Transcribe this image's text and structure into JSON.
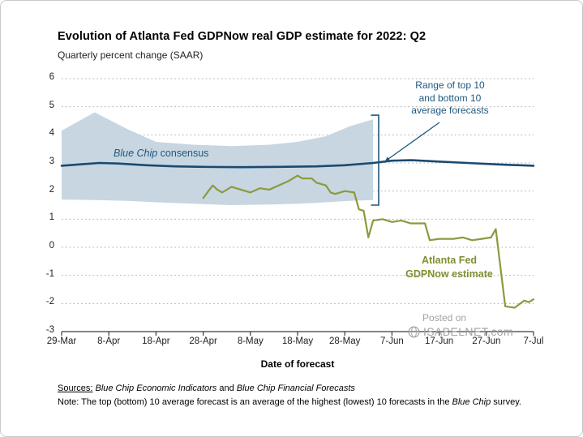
{
  "title": "Evolution of Atlanta Fed GDPNow real GDP estimate for 2022: Q2",
  "subtitle": "Quarterly percent change (SAAR)",
  "xlabel": "Date of forecast",
  "annotations": {
    "consensus_italic": "Blue Chip",
    "consensus_rest": " consensus",
    "range_text": "Range of top 10\nand bottom 10\naverage forecasts",
    "gdpnow_text": "Atlanta Fed\nGDPNow estimate"
  },
  "watermark": {
    "line1": "Posted on",
    "line2": "ISABELNET.com"
  },
  "footer": {
    "sources_label": "Sources:",
    "source1": "Blue Chip Economic Indicators",
    "sources_mid": "and",
    "source2": "Blue Chip Financial Forecasts",
    "note_label": "Note:",
    "note_text_1": "The top (bottom) 10 average forecast is an average of the highest (lowest) 10 forecasts in the",
    "note_italic": "Blue Chip",
    "note_text_2": "survey."
  },
  "colors": {
    "band": "#c7d6e1",
    "consensus_line": "#1a4a71",
    "gdpnow_line": "#8b9a3d",
    "annotation_blue": "#1f587e",
    "annotation_olive": "#7d9032",
    "grid": "#b5b5b5",
    "axis": "#3a3a3a",
    "watermark": "#a3a3a3"
  },
  "chart_data": {
    "type": "line",
    "title": "Evolution of Atlanta Fed GDPNow real GDP estimate for 2022: Q2",
    "ylabel": "Quarterly percent change (SAAR)",
    "xlabel": "Date of forecast",
    "x_unit": "days since 29-Mar-2022",
    "xlim": [
      0,
      100
    ],
    "ylim": [
      -3,
      6
    ],
    "grid": "dotted horizontal",
    "legend": "inline annotations",
    "x_ticks": [
      {
        "day": 0,
        "label": "29-Mar"
      },
      {
        "day": 10,
        "label": "8-Apr"
      },
      {
        "day": 20,
        "label": "18-Apr"
      },
      {
        "day": 30,
        "label": "28-Apr"
      },
      {
        "day": 40,
        "label": "8-May"
      },
      {
        "day": 50,
        "label": "18-May"
      },
      {
        "day": 60,
        "label": "28-May"
      },
      {
        "day": 70,
        "label": "7-Jun"
      },
      {
        "day": 80,
        "label": "17-Jun"
      },
      {
        "day": 90,
        "label": "27-Jun"
      },
      {
        "day": 100,
        "label": "7-Jul"
      }
    ],
    "y_ticks": [
      -3,
      -2,
      -1,
      0,
      1,
      2,
      3,
      4,
      5,
      6
    ],
    "band": {
      "name": "Range of top 10 and bottom 10 average forecasts",
      "points": [
        {
          "day": 0,
          "top": 4.15,
          "bottom": 1.7
        },
        {
          "day": 7,
          "top": 4.8,
          "bottom": 1.68
        },
        {
          "day": 14,
          "top": 4.2,
          "bottom": 1.65
        },
        {
          "day": 20,
          "top": 3.75,
          "bottom": 1.6
        },
        {
          "day": 28,
          "top": 3.65,
          "bottom": 1.55
        },
        {
          "day": 36,
          "top": 3.6,
          "bottom": 1.5
        },
        {
          "day": 44,
          "top": 3.65,
          "bottom": 1.52
        },
        {
          "day": 50,
          "top": 3.75,
          "bottom": 1.55
        },
        {
          "day": 56,
          "top": 3.95,
          "bottom": 1.6
        },
        {
          "day": 61,
          "top": 4.3,
          "bottom": 1.65
        },
        {
          "day": 66,
          "top": 4.55,
          "bottom": 1.68
        }
      ]
    },
    "series": [
      {
        "id": "blue-chip-consensus",
        "name": "Blue Chip consensus",
        "color": "#1a4a71",
        "width": 2.6,
        "points": [
          [
            0,
            2.9
          ],
          [
            4,
            2.95
          ],
          [
            8,
            3.0
          ],
          [
            12,
            2.98
          ],
          [
            18,
            2.92
          ],
          [
            24,
            2.88
          ],
          [
            30,
            2.86
          ],
          [
            38,
            2.85
          ],
          [
            46,
            2.86
          ],
          [
            54,
            2.88
          ],
          [
            60,
            2.92
          ],
          [
            66,
            3.0
          ],
          [
            70,
            3.08
          ],
          [
            74,
            3.1
          ],
          [
            80,
            3.05
          ],
          [
            86,
            3.0
          ],
          [
            92,
            2.95
          ],
          [
            100,
            2.9
          ]
        ]
      },
      {
        "id": "gdpnow",
        "name": "Atlanta Fed GDPNow estimate",
        "color": "#8b9a3d",
        "width": 2.2,
        "points": [
          [
            30,
            1.75
          ],
          [
            32,
            2.2
          ],
          [
            33,
            2.05
          ],
          [
            34,
            1.95
          ],
          [
            36,
            2.15
          ],
          [
            38,
            2.05
          ],
          [
            40,
            1.95
          ],
          [
            42,
            2.1
          ],
          [
            44,
            2.05
          ],
          [
            46,
            2.2
          ],
          [
            48,
            2.35
          ],
          [
            50,
            2.55
          ],
          [
            51,
            2.45
          ],
          [
            53,
            2.45
          ],
          [
            54,
            2.3
          ],
          [
            56,
            2.2
          ],
          [
            57,
            1.95
          ],
          [
            58,
            1.9
          ],
          [
            60,
            2.0
          ],
          [
            62,
            1.95
          ],
          [
            63,
            1.35
          ],
          [
            64,
            1.3
          ],
          [
            65,
            0.35
          ],
          [
            66,
            0.95
          ],
          [
            68,
            1.0
          ],
          [
            70,
            0.9
          ],
          [
            72,
            0.95
          ],
          [
            74,
            0.85
          ],
          [
            77,
            0.85
          ],
          [
            78,
            0.25
          ],
          [
            80,
            0.3
          ],
          [
            83,
            0.3
          ],
          [
            85,
            0.35
          ],
          [
            87,
            0.25
          ],
          [
            89,
            0.3
          ],
          [
            91,
            0.35
          ],
          [
            92,
            0.65
          ],
          [
            94,
            -2.1
          ],
          [
            96,
            -2.15
          ],
          [
            98,
            -1.9
          ],
          [
            99,
            -1.95
          ],
          [
            100,
            -1.85
          ]
        ]
      }
    ]
  }
}
